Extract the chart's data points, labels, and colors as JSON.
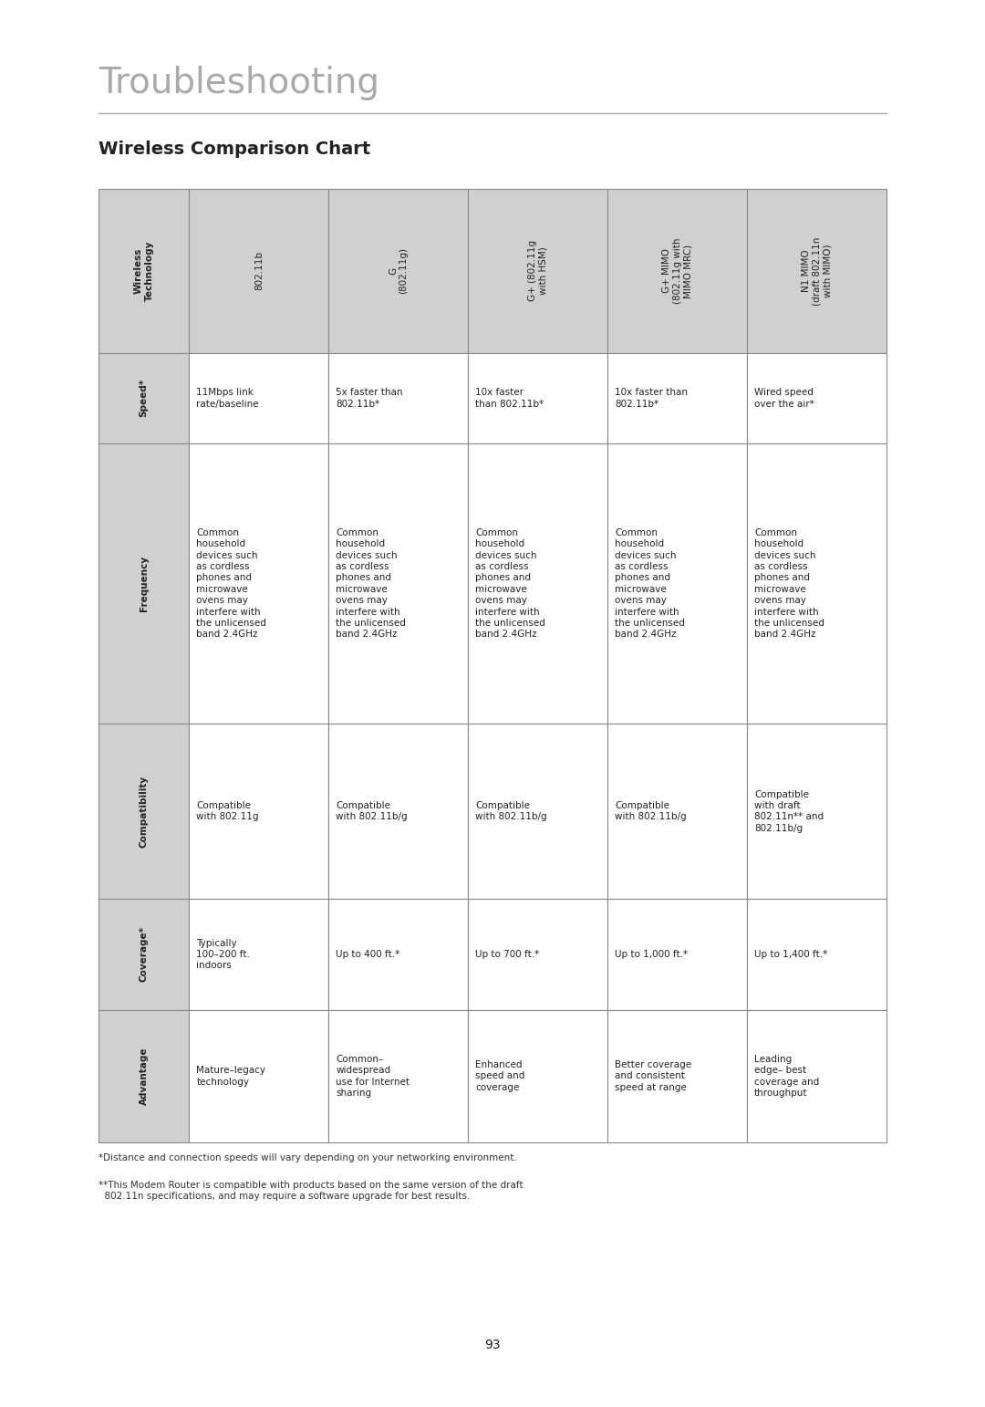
{
  "page_title": "Troubleshooting",
  "chart_title": "Wireless Comparison Chart",
  "background_color": "#ffffff",
  "title_color": "#aaaaaa",
  "title_fontsize": 28,
  "chart_title_fontsize": 14,
  "header_bg": "#d0d0d0",
  "cell_bg": "#ffffff",
  "border_color": "#888888",
  "text_color": "#222222",
  "footnote_color": "#333333",
  "columns": [
    "Wireless\nTechnology",
    "802.11b",
    "G\n(802.11g)",
    "G+ (802.11g\nwith HSM)",
    "G+ MIMO\n(802.11g with\nMIMO MRC)",
    "N1 MIMO\n(draft 802.11n\nwith MIMO)"
  ],
  "row_headers": [
    "Speed*",
    "Frequency",
    "Compatibility",
    "Coverage*",
    "Advantage"
  ],
  "table_data": [
    [
      "11Mbps link\nrate/baseline",
      "5x faster than\n802.11b*",
      "10x faster\nthan 802.11b*",
      "10x faster than\n802.11b*",
      "Wired speed\nover the air*"
    ],
    [
      "Common\nhousehold\ndevices such\nas cordless\nphones and\nmicrowave\novens may\ninterfere with\nthe unlicensed\nband 2.4GHz",
      "Common\nhousehold\ndevices such\nas cordless\nphones and\nmicrowave\novens may\ninterfere with\nthe unlicensed\nband 2.4GHz",
      "Common\nhousehold\ndevices such\nas cordless\nphones and\nmicrowave\novens may\ninterfere with\nthe unlicensed\nband 2.4GHz",
      "Common\nhousehold\ndevices such\nas cordless\nphones and\nmicrowave\novens may\ninterfere with\nthe unlicensed\nband 2.4GHz",
      "Common\nhousehold\ndevices such\nas cordless\nphones and\nmicrowave\novens may\ninterfere with\nthe unlicensed\nband 2.4GHz"
    ],
    [
      "Compatible\nwith 802.11g",
      "Compatible\nwith 802.11b/g",
      "Compatible\nwith 802.11b/g",
      "Compatible\nwith 802.11b/g",
      "Compatible\nwith draft\n802.11n** and\n802.11b/g"
    ],
    [
      "Typically\n100–200 ft.\nindoors",
      "Up to 400 ft.*",
      "Up to 700 ft.*",
      "Up to 1,000 ft.*",
      "Up to 1,400 ft.*"
    ],
    [
      "Mature–legacy\ntechnology",
      "Common–\nwidespread\nuse for Internet\nsharing",
      "Enhanced\nspeed and\ncoverage",
      "Better coverage\nand consistent\nspeed at range",
      "Leading\nedge– best\ncoverage and\nthroughput"
    ]
  ],
  "footnote1": "*Distance and connection speeds will vary depending on your networking environment.",
  "footnote2": "**This Modem Router is compatible with products based on the same version of the draft\n  802.11n specifications, and may require a software upgrade for best results.",
  "page_number": "93"
}
